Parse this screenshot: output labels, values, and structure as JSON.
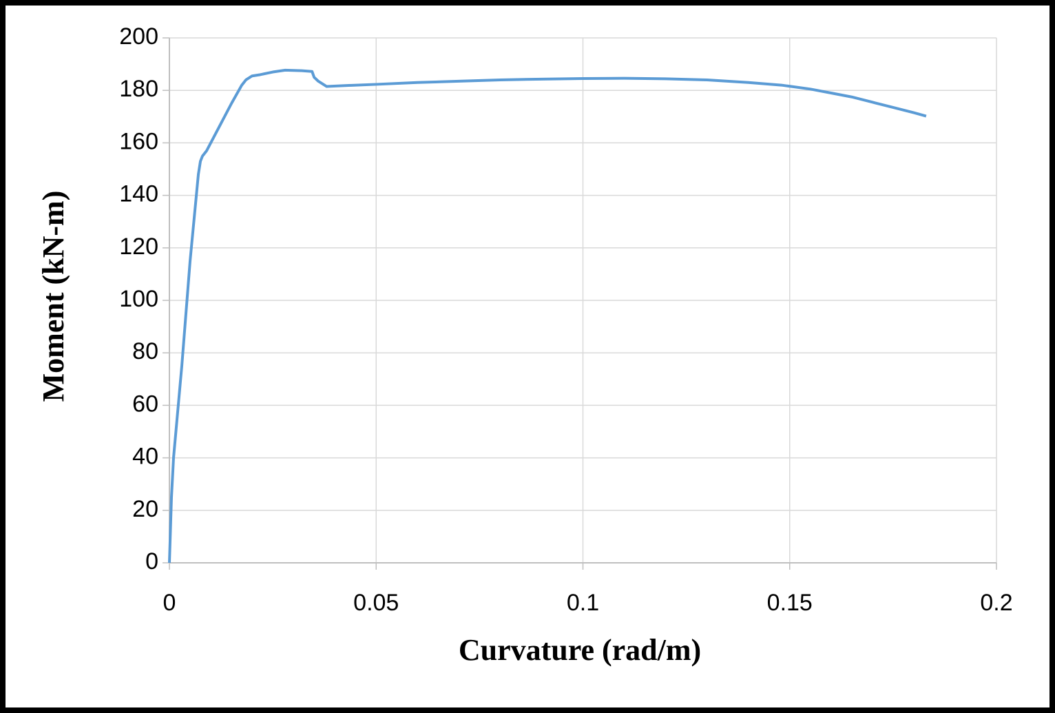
{
  "chart_data": {
    "type": "line",
    "x_label": "Curvature (rad/m)",
    "y_label": "Moment (kN-m)",
    "x": [
      0,
      0.0005,
      0.001,
      0.003,
      0.005,
      0.007,
      0.0075,
      0.008,
      0.009,
      0.012,
      0.015,
      0.0175,
      0.0185,
      0.02,
      0.022,
      0.025,
      0.028,
      0.032,
      0.0345,
      0.035,
      0.036,
      0.038,
      0.042,
      0.05,
      0.06,
      0.07,
      0.08,
      0.09,
      0.1,
      0.11,
      0.12,
      0.13,
      0.14,
      0.148,
      0.155,
      0.16,
      0.165,
      0.17,
      0.175,
      0.18,
      0.183
    ],
    "values": [
      0,
      25,
      40,
      75,
      115,
      148,
      153,
      155,
      157,
      166,
      175,
      182,
      184,
      185.5,
      186,
      187,
      187.7,
      187.5,
      187.2,
      185,
      183.5,
      181.5,
      181.8,
      182.3,
      183,
      183.5,
      184,
      184.3,
      184.5,
      184.6,
      184.4,
      184,
      183,
      182,
      180.5,
      179,
      177.5,
      175.5,
      173.5,
      171.5,
      170.2
    ],
    "color": "#5b9bd5",
    "xlim": [
      0,
      0.2
    ],
    "xticks": [
      0,
      0.05,
      0.1,
      0.15,
      0.2
    ],
    "ylim": [
      0,
      200
    ],
    "yticks": [
      0,
      20,
      40,
      60,
      80,
      100,
      120,
      140,
      160,
      180,
      200
    ],
    "grid": true
  }
}
